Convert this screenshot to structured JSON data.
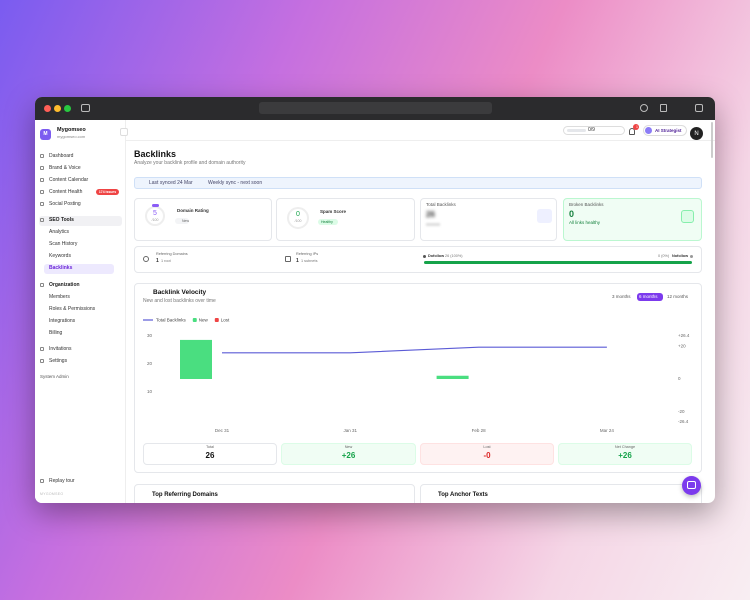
{
  "sidebar": {
    "brand": {
      "initial": "M",
      "name": "Mygomseo",
      "domain": "mygomseo.com"
    },
    "main_nav": [
      "Dashboard",
      "Brand & Voice",
      "Content Calendar",
      "Content Health",
      "Social Posting"
    ],
    "content_health_badge": "174 issues",
    "seo_tools": {
      "label": "SEO Tools",
      "items": [
        "Analytics",
        "Scan History",
        "Keywords",
        "Backlinks"
      ]
    },
    "organization": {
      "label": "Organization",
      "items": [
        "Members",
        "Roles & Permissions",
        "Integrations",
        "Billing"
      ]
    },
    "bottom_nav": [
      "Invitations",
      "Settings"
    ],
    "system_admin": "System Admin",
    "replay_tour": "Replay tour",
    "footer": "MYGOMSEO"
  },
  "topbar": {
    "progress": "0/9",
    "notifications": "1",
    "ai_button": "AI Strategist",
    "user_initial": "N"
  },
  "header": {
    "title": "Backlinks",
    "subtitle": "Analyze your backlink profile and domain authority"
  },
  "sync": {
    "last_synced": "Last synced 24 Mar",
    "schedule": "Weekly sync - next soon"
  },
  "stats": {
    "domain_rating": {
      "value": "5",
      "scale": "/100",
      "label": "Domain Rating",
      "badge": "New"
    },
    "spam_score": {
      "value": "0",
      "scale": "/100",
      "label": "Spam Score",
      "badge": "Healthy"
    },
    "total_backlinks": {
      "label": "Total Backlinks",
      "value": "26"
    },
    "broken_backlinks": {
      "label": "Broken Backlinks",
      "value": "0",
      "note": "All links healthy"
    }
  },
  "links": {
    "referring_domains": {
      "label": "Referring Domains",
      "value": "1",
      "note": "1 root"
    },
    "referring_ips": {
      "label": "Referring IPs",
      "value": "1",
      "note": "1 subnets"
    },
    "dofollow": {
      "label": "Dofollow",
      "value": "26 (100%)"
    },
    "nofollow": {
      "label": "Nofollow",
      "value": "0 (0%)"
    }
  },
  "velocity": {
    "title": "Backlink Velocity",
    "subtitle": "New and lost backlinks over time",
    "periods": [
      "3 months",
      "6 months",
      "12 months"
    ],
    "chart_data": {
      "type": "combo",
      "categories": [
        "Dec 31",
        "Jan 31",
        "Feb 28",
        "Mar 24"
      ],
      "series": [
        {
          "name": "Total Backlinks",
          "color": "#5b5bd6",
          "values": [
            24,
            24,
            26,
            26
          ]
        },
        {
          "name": "New",
          "color": "#4ade80",
          "values": [
            24,
            0,
            2,
            0
          ],
          "axis": "y2"
        },
        {
          "name": "Lost",
          "color": "#ef4444",
          "values": [
            0,
            0,
            0,
            0
          ],
          "axis": "y2"
        }
      ],
      "ylim": [
        0,
        30
      ],
      "yticks": [
        10,
        20,
        30
      ],
      "y2lim": [
        -26.4,
        26.4
      ],
      "y2ticks": [
        {
          "value": 26.4,
          "label": "+26.4"
        },
        {
          "value": 20,
          "label": "+20"
        },
        0,
        -20,
        -26.4
      ]
    },
    "summary": [
      {
        "label": "Total",
        "value": "26"
      },
      {
        "label": "New",
        "value": "+26"
      },
      {
        "label": "Lost",
        "value": "-0"
      },
      {
        "label": "Net Change",
        "value": "+26"
      }
    ]
  },
  "bottom_cards": [
    "Top Referring Domains",
    "Top Anchor Texts"
  ]
}
